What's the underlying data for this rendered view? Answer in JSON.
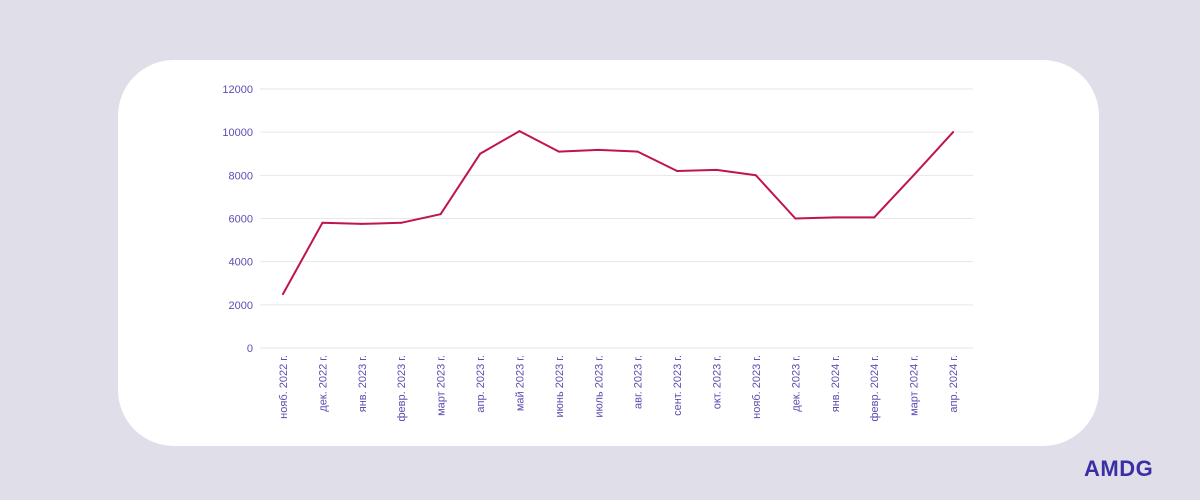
{
  "brand": {
    "logo": "AMDG",
    "logo_color": "#3b2fa6"
  },
  "colors": {
    "background": "#e0dfe9",
    "card": "#ffffff",
    "line": "#c0144a",
    "tick_label": "#5a4fb0",
    "grid": "#e6e6ee"
  },
  "chart_data": {
    "type": "line",
    "title": "",
    "xlabel": "",
    "ylabel": "",
    "ylim": [
      0,
      12000
    ],
    "yticks": [
      0,
      2000,
      4000,
      6000,
      8000,
      10000,
      12000
    ],
    "grid": "horizontal",
    "legend": "none",
    "categories": [
      "нояб. 2022 г.",
      "дек. 2022 г.",
      "янв. 2023 г.",
      "февр. 2023 г.",
      "март 2023 г.",
      "апр. 2023 г.",
      "май 2023 г.",
      "июнь 2023 г.",
      "июль 2023 г.",
      "авг. 2023 г.",
      "сент. 2023 г.",
      "окт. 2023 г.",
      "нояб. 2023 г.",
      "дек. 2023 г.",
      "янв. 2024 г.",
      "февр. 2024 г.",
      "март 2024 г.",
      "апр. 2024 г."
    ],
    "series": [
      {
        "values": [
          2500,
          5800,
          5750,
          5800,
          6200,
          9000,
          10050,
          9100,
          9180,
          9100,
          8200,
          8250,
          8000,
          6000,
          6050,
          6050,
          8000,
          10000
        ]
      }
    ]
  }
}
